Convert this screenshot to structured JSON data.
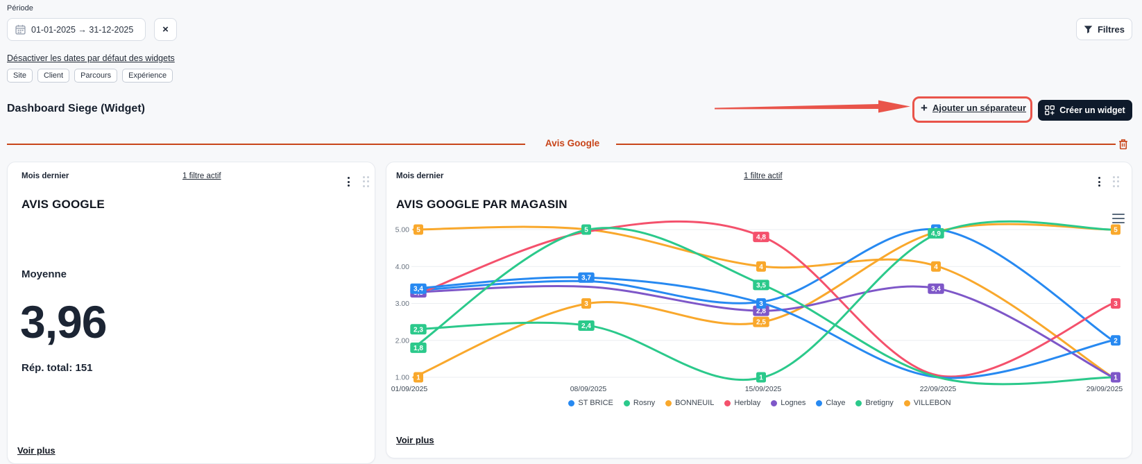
{
  "period": {
    "label": "Période",
    "value": "01-01-2025 → 31-12-2025",
    "clear_label": "×"
  },
  "filters_button": {
    "label": "Filtres"
  },
  "disable_dates_link": "Désactiver les dates par défaut des widgets",
  "tags": [
    "Site",
    "Client",
    "Parcours",
    "Expérience"
  ],
  "dashboard": {
    "title": "Dashboard Siege (Widget)",
    "add_separator_label": "Ajouter un séparateur",
    "add_separator_plus": "+",
    "create_widget_label": "Créer un widget"
  },
  "separator": {
    "title": "Avis Google",
    "color": "#c8451a"
  },
  "left_card": {
    "period_badge": "Mois dernier",
    "filter_link": "1  filtre actif",
    "title": "AVIS GOOGLE",
    "metric_label": "Moyenne",
    "metric_value": "3,96",
    "total_label": "Rép. total: 151",
    "see_more": "Voir plus"
  },
  "right_card": {
    "period_badge": "Mois dernier",
    "filter_link": "1  filtre actif",
    "title": "AVIS GOOGLE PAR MAGASIN",
    "see_more": "Voir plus"
  },
  "icons": {
    "calendar": "calendar-grid",
    "close": "×",
    "filter": "funnel",
    "trash": "trash-can",
    "kebab": "⋮",
    "drag_handle": "six-dots",
    "chart_menu": "≡",
    "create_widget": "grid-plus"
  },
  "chart_data": {
    "type": "line",
    "title": "AVIS GOOGLE PAR MAGASIN",
    "x": [
      "01/09/2025",
      "08/09/2025",
      "15/09/2025",
      "22/09/2025",
      "29/09/2025"
    ],
    "xlabel": "",
    "ylabel": "",
    "ylim": [
      1,
      5
    ],
    "yticks": [
      "5.00",
      "4.00",
      "3.00",
      "2.00",
      "1.00"
    ],
    "grid": true,
    "legend_position": "bottom",
    "smoothed": true,
    "draw_order": [
      2,
      7,
      5,
      3,
      4,
      0,
      1,
      6
    ],
    "series": [
      {
        "name": "ST BRICE",
        "color": "#2789f1",
        "values": [
          3.4,
          3.7,
          3,
          1,
          2
        ],
        "labels": [
          "3,4",
          "3,7",
          "3",
          null,
          "2"
        ]
      },
      {
        "name": "Rosny",
        "color": "#2bc98b",
        "values": [
          1.8,
          5,
          3.5,
          1,
          1
        ],
        "labels": [
          "1,8",
          "5",
          "3,5",
          null,
          null
        ]
      },
      {
        "name": "BONNEUIL",
        "color": "#f9a82c",
        "values": [
          5,
          5,
          4,
          4,
          1
        ],
        "labels": [
          "5",
          null,
          "4",
          "4",
          null
        ]
      },
      {
        "name": "Herblay",
        "color": "#f4516c",
        "values": [
          3.2,
          4.95,
          4.8,
          1.05,
          3
        ],
        "labels": [
          null,
          null,
          "4,8",
          null,
          "3"
        ]
      },
      {
        "name": "Lognes",
        "color": "#7e57c8",
        "values": [
          3.3,
          3.45,
          2.8,
          3.4,
          1
        ],
        "labels": [
          "3,3",
          null,
          "2,8",
          "3,4",
          "1"
        ]
      },
      {
        "name": "Claye",
        "color": "#2789f1",
        "values": [
          3.35,
          3.6,
          3.05,
          5,
          2
        ],
        "labels": [
          null,
          null,
          null,
          "5",
          null
        ]
      },
      {
        "name": "Bretigny",
        "color": "#2bc98b",
        "values": [
          2.3,
          2.4,
          1,
          4.9,
          5
        ],
        "labels": [
          "2,3",
          "2,4",
          "1",
          "4,9",
          null
        ]
      },
      {
        "name": "VILLEBON",
        "color": "#f9a82c",
        "values": [
          1,
          3,
          2.5,
          4.95,
          5
        ],
        "labels": [
          "1",
          "3",
          "2,5",
          null,
          "5"
        ]
      }
    ]
  }
}
